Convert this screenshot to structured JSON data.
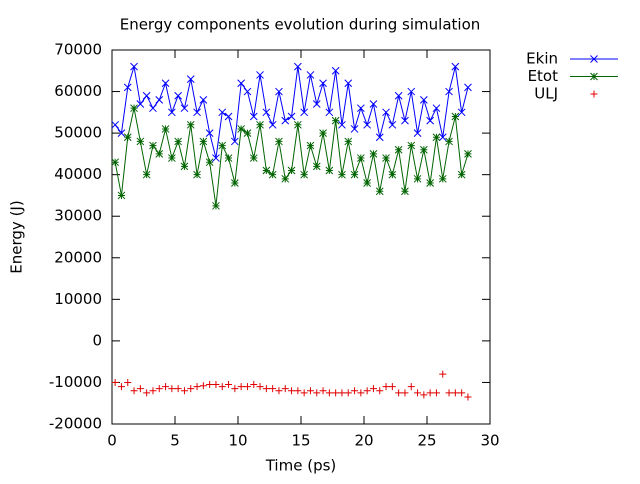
{
  "chart_data": {
    "type": "line",
    "title": "Energy components evolution during simulation",
    "xlabel": "Time (ps)",
    "ylabel": "Energy (J)",
    "xlim": [
      0,
      30
    ],
    "xticks": [
      0,
      5,
      10,
      15,
      20,
      25,
      30
    ],
    "ylim": [
      -20000,
      70000
    ],
    "yticks": [
      -20000,
      -10000,
      0,
      10000,
      20000,
      30000,
      40000,
      50000,
      60000,
      70000
    ],
    "x": [
      0.25,
      0.75,
      1.25,
      1.75,
      2.25,
      2.75,
      3.25,
      3.75,
      4.25,
      4.75,
      5.25,
      5.75,
      6.25,
      6.75,
      7.25,
      7.75,
      8.25,
      8.75,
      9.25,
      9.75,
      10.25,
      10.75,
      11.25,
      11.75,
      12.25,
      12.75,
      13.25,
      13.75,
      14.25,
      14.75,
      15.25,
      15.75,
      16.25,
      16.75,
      17.25,
      17.75,
      18.25,
      18.75,
      19.25,
      19.75,
      20.25,
      20.75,
      21.25,
      21.75,
      22.25,
      22.75,
      23.25,
      23.75,
      24.25,
      24.75,
      25.25,
      25.75,
      26.25,
      26.75,
      27.25,
      27.75,
      28.25
    ],
    "legend": "outside-top-right",
    "series": [
      {
        "name": "Ekin",
        "color": "#0000ff",
        "marker": "x",
        "line": true,
        "values": [
          52000,
          50000,
          61000,
          66000,
          57000,
          59000,
          56000,
          58000,
          62000,
          55000,
          59000,
          56000,
          63000,
          55000,
          58000,
          50000,
          44000,
          55000,
          54000,
          48000,
          62000,
          60000,
          54000,
          64000,
          55000,
          52000,
          60000,
          53000,
          54000,
          66000,
          55000,
          64000,
          57000,
          62000,
          55000,
          65000,
          52000,
          62000,
          51000,
          56000,
          52000,
          57000,
          49000,
          55000,
          52000,
          59000,
          53000,
          60000,
          50000,
          58000,
          53000,
          56000,
          49000,
          60000,
          66000,
          55000,
          61000
        ]
      },
      {
        "name": "Etot",
        "color": "#006400",
        "marker": "star",
        "line": true,
        "values": [
          43000,
          35000,
          49000,
          56000,
          48000,
          40000,
          47000,
          45000,
          51000,
          44000,
          48000,
          42000,
          52000,
          40000,
          48000,
          43000,
          32500,
          47000,
          44000,
          38000,
          51000,
          50000,
          44000,
          52000,
          41000,
          40000,
          48000,
          39000,
          41000,
          52000,
          40000,
          47000,
          42000,
          50000,
          41000,
          53000,
          40000,
          48000,
          40000,
          44000,
          38000,
          45000,
          36000,
          44000,
          40000,
          46000,
          36000,
          47000,
          39000,
          46000,
          38000,
          49000,
          39000,
          48000,
          54000,
          40000,
          45000
        ]
      },
      {
        "name": "ULJ",
        "color": "#e00000",
        "marker": "plus",
        "line": false,
        "values": [
          -10000,
          -11000,
          -10000,
          -12000,
          -11500,
          -12500,
          -12000,
          -11500,
          -11000,
          -11500,
          -11500,
          -12000,
          -11500,
          -11000,
          -10800,
          -10500,
          -10500,
          -11000,
          -10500,
          -11500,
          -11000,
          -11000,
          -10500,
          -11000,
          -11500,
          -11500,
          -12000,
          -11500,
          -12000,
          -12000,
          -12500,
          -12000,
          -12500,
          -12000,
          -12500,
          -12500,
          -12500,
          -12500,
          -12000,
          -12500,
          -12000,
          -11500,
          -12000,
          -11000,
          -11000,
          -12500,
          -12500,
          -11000,
          -12500,
          -13000,
          -12500,
          -12500,
          -8000,
          -12500,
          -12500,
          -12500,
          -13500
        ]
      }
    ]
  }
}
